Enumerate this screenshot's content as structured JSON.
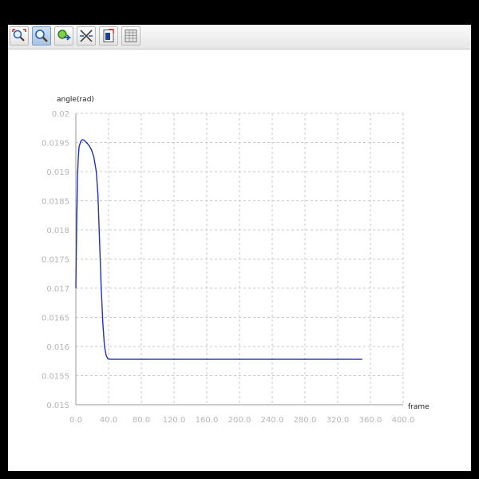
{
  "toolbar": {
    "buttons": [
      {
        "icon": "zoom-fit-icon",
        "active": false
      },
      {
        "icon": "zoom-icon",
        "active": true
      },
      {
        "icon": "pan-icon",
        "active": false
      },
      {
        "icon": "crosshair-icon",
        "active": false
      },
      {
        "icon": "export-data-icon",
        "active": false
      },
      {
        "icon": "table-icon",
        "active": false
      }
    ]
  },
  "chart_data": {
    "type": "line",
    "title": "",
    "xlabel": "frame",
    "ylabel": "angle(rad)",
    "xlim": [
      0,
      400
    ],
    "ylim": [
      0.015,
      0.02
    ],
    "x_ticks": [
      "0.0",
      "40.0",
      "80.0",
      "120.0",
      "160.0",
      "200.0",
      "240.0",
      "280.0",
      "320.0",
      "360.0",
      "400.0"
    ],
    "y_ticks": [
      "0.015",
      "0.0155",
      "0.016",
      "0.0165",
      "0.017",
      "0.0175",
      "0.018",
      "0.0185",
      "0.019",
      "0.0195",
      "0.02"
    ],
    "grid": true,
    "series": [
      {
        "color": "#2233bb",
        "x": [
          0,
          1,
          2,
          3,
          4,
          6,
          8,
          10,
          13,
          16,
          19,
          22,
          25,
          27,
          29,
          31,
          33,
          35,
          37,
          39,
          42,
          50,
          100,
          200,
          300,
          350
        ],
        "y": [
          0.017,
          0.0181,
          0.0189,
          0.01925,
          0.01943,
          0.01952,
          0.01955,
          0.01954,
          0.0195,
          0.01945,
          0.01938,
          0.01925,
          0.019,
          0.0186,
          0.0178,
          0.017,
          0.0164,
          0.016,
          0.01585,
          0.01579,
          0.01578,
          0.01578,
          0.01578,
          0.01578,
          0.01578,
          0.01578
        ]
      }
    ]
  }
}
